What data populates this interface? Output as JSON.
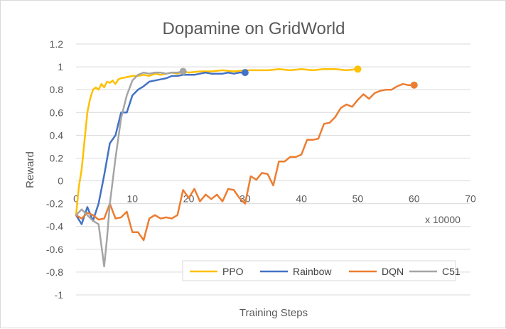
{
  "chart_data": {
    "type": "line",
    "title": "Dopamine on GridWorld",
    "xlabel": "Training Steps",
    "ylabel": "Reward",
    "x_unit_label": "x 10000",
    "xlim": [
      0,
      70
    ],
    "ylim": [
      -1,
      1.2
    ],
    "x_ticks": [
      0,
      10,
      20,
      30,
      40,
      50,
      60,
      70
    ],
    "y_ticks": [
      -1,
      -0.8,
      -0.6,
      -0.4,
      -0.2,
      0,
      0.2,
      0.4,
      0.6,
      0.8,
      1,
      1.2
    ],
    "grid": "horizontal",
    "legend_position": "bottom-right",
    "series": [
      {
        "name": "PPO",
        "color": "#FFC000",
        "x": [
          0,
          0.5,
          1,
          1.5,
          2,
          2.5,
          3,
          3.5,
          4,
          4.5,
          5,
          5.5,
          6,
          6.5,
          7,
          7.5,
          8,
          9,
          10,
          11,
          12,
          13,
          14,
          15,
          16,
          17,
          18,
          19,
          20,
          22,
          24,
          26,
          28,
          30,
          32,
          34,
          36,
          38,
          40,
          42,
          44,
          46,
          48,
          50
        ],
        "y": [
          -0.3,
          -0.05,
          0.1,
          0.35,
          0.6,
          0.72,
          0.8,
          0.82,
          0.8,
          0.85,
          0.82,
          0.87,
          0.86,
          0.88,
          0.85,
          0.89,
          0.9,
          0.91,
          0.92,
          0.92,
          0.93,
          0.92,
          0.94,
          0.93,
          0.94,
          0.95,
          0.94,
          0.96,
          0.95,
          0.96,
          0.96,
          0.97,
          0.96,
          0.97,
          0.97,
          0.97,
          0.98,
          0.97,
          0.98,
          0.97,
          0.98,
          0.98,
          0.97,
          0.98
        ]
      },
      {
        "name": "Rainbow",
        "color": "#4472C4",
        "x": [
          0,
          1,
          2,
          3,
          4,
          5,
          6,
          7,
          8,
          9,
          10,
          11,
          12,
          13,
          14,
          15,
          16,
          17,
          18,
          19,
          20,
          21,
          22,
          23,
          24,
          25,
          26,
          27,
          28,
          29,
          30
        ],
        "y": [
          -0.3,
          -0.38,
          -0.23,
          -0.35,
          -0.2,
          0.05,
          0.33,
          0.4,
          0.6,
          0.6,
          0.75,
          0.8,
          0.83,
          0.87,
          0.88,
          0.89,
          0.9,
          0.92,
          0.92,
          0.93,
          0.93,
          0.93,
          0.94,
          0.95,
          0.94,
          0.94,
          0.94,
          0.95,
          0.94,
          0.95,
          0.95
        ]
      },
      {
        "name": "DQN",
        "color": "#ED7D31",
        "x": [
          0,
          1,
          2,
          3,
          4,
          5,
          6,
          7,
          8,
          9,
          10,
          11,
          12,
          13,
          14,
          15,
          16,
          17,
          18,
          19,
          20,
          21,
          22,
          23,
          24,
          25,
          26,
          27,
          28,
          29,
          30,
          31,
          32,
          33,
          34,
          35,
          36,
          37,
          38,
          39,
          40,
          41,
          42,
          43,
          44,
          45,
          46,
          47,
          48,
          49,
          50,
          51,
          52,
          53,
          54,
          55,
          56,
          57,
          58,
          59,
          60
        ],
        "y": [
          -0.3,
          -0.33,
          -0.28,
          -0.3,
          -0.34,
          -0.33,
          -0.2,
          -0.33,
          -0.32,
          -0.27,
          -0.45,
          -0.45,
          -0.52,
          -0.33,
          -0.3,
          -0.33,
          -0.32,
          -0.33,
          -0.3,
          -0.08,
          -0.15,
          -0.07,
          -0.18,
          -0.12,
          -0.16,
          -0.12,
          -0.18,
          -0.07,
          -0.08,
          -0.15,
          -0.2,
          0.04,
          0.01,
          0.07,
          0.06,
          -0.04,
          0.17,
          0.17,
          0.21,
          0.21,
          0.23,
          0.36,
          0.36,
          0.37,
          0.5,
          0.51,
          0.56,
          0.64,
          0.67,
          0.65,
          0.71,
          0.76,
          0.72,
          0.77,
          0.79,
          0.8,
          0.8,
          0.83,
          0.85,
          0.84,
          0.84
        ]
      },
      {
        "name": "C51",
        "color": "#A5A5A5",
        "x": [
          0,
          1,
          2,
          3,
          4,
          5,
          5.5,
          6,
          7,
          8,
          9,
          10,
          11,
          12,
          13,
          14,
          15,
          16,
          17,
          18,
          19
        ],
        "y": [
          -0.3,
          -0.25,
          -0.3,
          -0.35,
          -0.38,
          -0.75,
          -0.5,
          -0.2,
          0.2,
          0.55,
          0.75,
          0.88,
          0.93,
          0.95,
          0.94,
          0.95,
          0.95,
          0.94,
          0.95,
          0.95,
          0.96
        ]
      }
    ]
  }
}
